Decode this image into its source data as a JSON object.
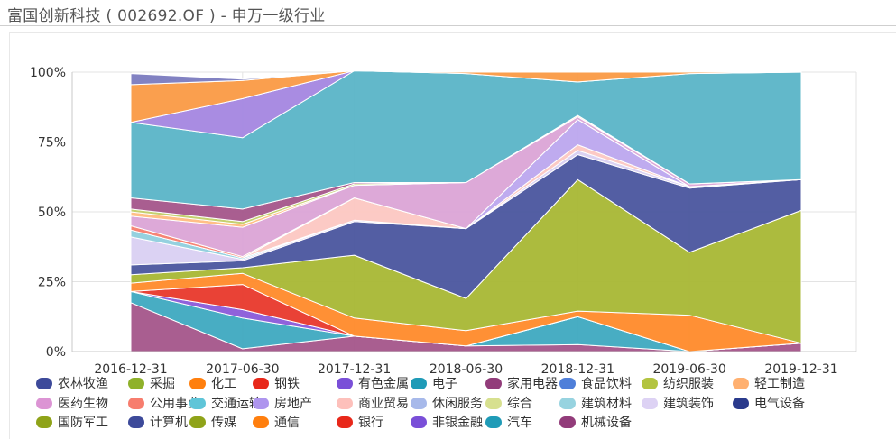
{
  "header": {
    "title": "富国创新科技 ( 002692.OF ) - 申万一级行业"
  },
  "chart_data": {
    "type": "area",
    "stacked": true,
    "percent": true,
    "x": [
      "2016-12-31",
      "2017-06-30",
      "2017-12-31",
      "2018-06-30",
      "2018-12-31",
      "2019-06-30",
      "2019-12-31"
    ],
    "ylim": [
      0,
      100
    ],
    "yticks": [
      0,
      25,
      50,
      75,
      100
    ],
    "ytick_labels": [
      "0%",
      "25%",
      "50%",
      "75%",
      "100%"
    ],
    "grid": true,
    "legend_position": "bottom",
    "series": [
      {
        "name": "机械设备",
        "color": "#a4558a",
        "values": [
          17.5,
          1.0,
          5.5,
          2.0,
          2.5,
          0.0,
          3.0
        ]
      },
      {
        "name": "汽车",
        "color": "#3ea9c0",
        "values": [
          4.0,
          11.0,
          0.0,
          0.0,
          10.0,
          0.0,
          0.0
        ]
      },
      {
        "name": "非银金融",
        "color": "#8a5ad9",
        "values": [
          0.0,
          3.0,
          0.0,
          0.0,
          0.0,
          0.0,
          0.0
        ]
      },
      {
        "name": "银行",
        "color": "#e8382b",
        "values": [
          0.0,
          9.0,
          0.0,
          0.0,
          0.0,
          0.0,
          0.0
        ]
      },
      {
        "name": "通信",
        "color": "#ff8a2a",
        "values": [
          3.0,
          4.0,
          6.5,
          5.5,
          2.0,
          13.0,
          0.0
        ]
      },
      {
        "name": "传媒",
        "color": "#a8b734",
        "values": [
          3.0,
          2.0,
          22.5,
          11.5,
          47.0,
          22.5,
          47.5
        ]
      },
      {
        "name": "计算机",
        "color": "#4a559e",
        "values": [
          3.5,
          2.5,
          12.0,
          25.0,
          9.0,
          23.0,
          11.0
        ]
      },
      {
        "name": "国防军工",
        "color": "#8fa319",
        "values": [
          0.0,
          0.0,
          0.0,
          0.0,
          0.0,
          0.0,
          0.0
        ]
      },
      {
        "name": "电气设备",
        "color": "#2f3f8f",
        "values": [
          0.0,
          0.0,
          0.0,
          0.0,
          0.0,
          0.0,
          0.0
        ]
      },
      {
        "name": "建筑装饰",
        "color": "#d9d0f2",
        "values": [
          10.0,
          0.5,
          0.5,
          0.0,
          1.5,
          0.5,
          0.0
        ]
      },
      {
        "name": "建筑材料",
        "color": "#8fcfdd",
        "values": [
          2.5,
          0.5,
          0.0,
          0.0,
          0.0,
          0.0,
          0.0
        ]
      },
      {
        "name": "综合",
        "color": "#c9d88d",
        "values": [
          0.0,
          0.0,
          0.0,
          0.0,
          0.0,
          0.0,
          0.0
        ]
      },
      {
        "name": "休闲服务",
        "color": "#9eb5e6",
        "values": [
          0.0,
          0.0,
          0.0,
          0.0,
          0.0,
          0.0,
          0.0
        ]
      },
      {
        "name": "商业贸易",
        "color": "#fcc7c2",
        "values": [
          0.0,
          0.0,
          8.0,
          0.0,
          2.0,
          0.0,
          0.0
        ]
      },
      {
        "name": "房地产",
        "color": "#bca6ee",
        "values": [
          0.0,
          0.0,
          0.0,
          0.0,
          9.0,
          0.0,
          0.0
        ]
      },
      {
        "name": "交通运输",
        "color": "#66c9d9",
        "values": [
          0.0,
          0.0,
          0.0,
          0.0,
          0.0,
          0.0,
          0.0
        ]
      },
      {
        "name": "公用事业",
        "color": "#f77d6e",
        "values": [
          1.5,
          0.5,
          0.0,
          0.0,
          0.0,
          0.0,
          0.0
        ]
      },
      {
        "name": "医药生物",
        "color": "#dba4d6",
        "values": [
          3.5,
          10.5,
          4.5,
          16.5,
          1.0,
          1.0,
          0.0
        ]
      },
      {
        "name": "轻工制造",
        "color": "#ffbc80",
        "values": [
          1.5,
          1.0,
          0.0,
          0.0,
          0.5,
          0.0,
          0.0
        ]
      },
      {
        "name": "纺织服装",
        "color": "#c2ce67",
        "values": [
          1.0,
          1.0,
          0.5,
          0.0,
          0.0,
          0.0,
          0.0
        ]
      },
      {
        "name": "食品饮料",
        "color": "#5b8ad9",
        "values": [
          0.0,
          0.0,
          0.0,
          0.0,
          0.0,
          0.0,
          0.0
        ]
      },
      {
        "name": "家用电器",
        "color": "#a4558a",
        "values": [
          4.0,
          4.5,
          0.5,
          0.0,
          0.0,
          0.0,
          0.0
        ]
      },
      {
        "name": "电子",
        "color": "#5ab4c7",
        "values": [
          27.0,
          25.5,
          40.0,
          39.0,
          12.0,
          39.5,
          38.5
        ]
      },
      {
        "name": "有色金属",
        "color": "#a486e0",
        "values": [
          0.0,
          14.0,
          0.0,
          0.0,
          0.0,
          0.0,
          0.0
        ]
      },
      {
        "name": "钢铁",
        "color": "#e8382b",
        "values": [
          0.0,
          0.0,
          0.0,
          0.0,
          0.0,
          0.0,
          0.0
        ]
      },
      {
        "name": "化工",
        "color": "#fa9a45",
        "values": [
          13.5,
          6.5,
          0.0,
          0.5,
          3.5,
          0.5,
          0.0
        ]
      },
      {
        "name": "采掘",
        "color": "#94b13a",
        "values": [
          0.0,
          0.0,
          0.0,
          0.0,
          0.0,
          0.0,
          0.0
        ]
      },
      {
        "name": "农林牧渔",
        "color": "#7b7bbf",
        "values": [
          4.0,
          0.5,
          0.0,
          0.0,
          0.0,
          0.0,
          0.0
        ]
      }
    ]
  },
  "legend": {
    "rows": [
      [
        {
          "label": "农林牧渔",
          "color": "#3d4a9a"
        },
        {
          "label": "采掘",
          "color": "#8fb12a"
        },
        {
          "label": "化工",
          "color": "#ff7f0e"
        },
        {
          "label": "钢铁",
          "color": "#e8281a"
        },
        {
          "label": "有色金属",
          "color": "#7a4fd8"
        },
        {
          "label": "电子",
          "color": "#1f9bb7"
        },
        {
          "label": "家用电器",
          "color": "#923c7a"
        },
        {
          "label": "食品饮料",
          "color": "#4f7fd9"
        },
        {
          "label": "纺织服装",
          "color": "#b3c440"
        },
        {
          "label": "轻工制造",
          "color": "#ffb070"
        }
      ],
      [
        {
          "label": "医药生物",
          "color": "#dc94d4"
        },
        {
          "label": "公用事业",
          "color": "#f77d6e"
        },
        {
          "label": "交通运输",
          "color": "#5fc5d8"
        },
        {
          "label": "房地产",
          "color": "#ae95ee"
        },
        {
          "label": "商业贸易",
          "color": "#fdc0bb"
        },
        {
          "label": "休闲服务",
          "color": "#a7b9ea"
        },
        {
          "label": "综合",
          "color": "#d7e08f"
        },
        {
          "label": "建筑材料",
          "color": "#97d3e0"
        },
        {
          "label": "建筑装饰",
          "color": "#ddd2f4"
        },
        {
          "label": "电气设备",
          "color": "#2a3a8c"
        }
      ],
      [
        {
          "label": "国防军工",
          "color": "#8fa319"
        },
        {
          "label": "计算机",
          "color": "#3d4a9a"
        },
        {
          "label": "传媒",
          "color": "#8fa319"
        },
        {
          "label": "通信",
          "color": "#ff7f0e"
        },
        {
          "label": "银行",
          "color": "#e8281a"
        },
        {
          "label": "非银金融",
          "color": "#7a4fd8"
        },
        {
          "label": "汽车",
          "color": "#1f9bb7"
        },
        {
          "label": "机械设备",
          "color": "#923c7a"
        }
      ]
    ]
  }
}
